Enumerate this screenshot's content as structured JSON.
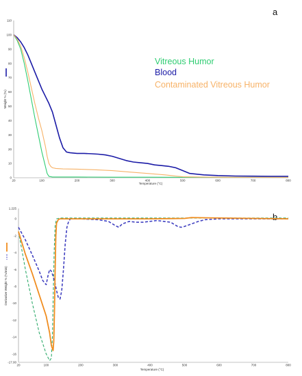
{
  "chart_data": [
    {
      "type": "line",
      "panel_label": "a",
      "xlabel": "Temperature (°C)",
      "ylabel": "Weight % (%)",
      "xlim": [
        20,
        800
      ],
      "ylim": [
        0,
        110
      ],
      "x_ticks": [
        "20",
        "100",
        "200",
        "300",
        "400",
        "500",
        "600",
        "700",
        "800"
      ],
      "y_ticks": [
        "0",
        "10",
        "20",
        "30",
        "40",
        "50",
        "60",
        "70",
        "80",
        "90",
        "100",
        "110"
      ],
      "grid": false,
      "legend_position": "center-right",
      "series": [
        {
          "name": "Vitreous Humor",
          "color": "#2ecc71",
          "style": "solid",
          "x": [
            20,
            30,
            40,
            50,
            60,
            70,
            80,
            90,
            100,
            110,
            115,
            120,
            130,
            200,
            300,
            400,
            500,
            600,
            700,
            800
          ],
          "y": [
            100,
            96,
            90,
            80,
            68,
            55,
            42,
            30,
            18,
            8,
            3,
            1,
            0.5,
            0.5,
            0.4,
            0.4,
            0.3,
            0.3,
            0.3,
            0.3
          ]
        },
        {
          "name": "Blood",
          "color": "#1a1aa6",
          "style": "solid",
          "x": [
            20,
            30,
            40,
            50,
            60,
            70,
            80,
            90,
            100,
            110,
            120,
            130,
            140,
            150,
            160,
            170,
            180,
            200,
            220,
            240,
            260,
            280,
            300,
            320,
            340,
            360,
            380,
            400,
            420,
            440,
            460,
            480,
            500,
            520,
            560,
            600,
            650,
            700,
            750,
            800
          ],
          "y": [
            100,
            98,
            95,
            91,
            86,
            80,
            74,
            68,
            62,
            57,
            52,
            46,
            37,
            28,
            21,
            18,
            17.5,
            17,
            17,
            16.8,
            16.5,
            16,
            15,
            13.5,
            12,
            11,
            10.5,
            10,
            9,
            8.5,
            8,
            7,
            5,
            3,
            2,
            1.5,
            1.2,
            1.1,
            1,
            1
          ]
        },
        {
          "name": "Contaminated Vitreous Humor",
          "color": "#f7b267",
          "style": "solid",
          "x": [
            20,
            30,
            40,
            50,
            60,
            70,
            80,
            90,
            100,
            110,
            115,
            120,
            125,
            130,
            140,
            160,
            200,
            250,
            300,
            350,
            400,
            450,
            480,
            500,
            550,
            600,
            700,
            800
          ],
          "y": [
            100,
            97,
            92,
            84,
            74,
            63,
            52,
            42,
            33,
            22,
            15,
            10,
            8,
            7,
            6.5,
            6.2,
            6,
            5.6,
            5,
            4,
            3,
            2,
            1.2,
            0.7,
            0.5,
            0.4,
            0.3,
            0.3
          ]
        }
      ]
    },
    {
      "type": "line",
      "panel_label": "b",
      "xlabel": "Temperature (°C)",
      "ylabel": "Derivative Weight % (%/min)",
      "xlim": [
        20,
        800
      ],
      "ylim": [
        -17.0,
        1.225
      ],
      "x_ticks": [
        "20",
        "100",
        "200",
        "300",
        "400",
        "500",
        "600",
        "700",
        "800"
      ],
      "y_ticks": [
        "1.225",
        "0",
        "-2",
        "-4",
        "-6",
        "-8",
        "-10",
        "-12",
        "-14",
        "-16",
        "-17.00"
      ],
      "grid": false,
      "series": [
        {
          "name": "Vitreous Humor",
          "color": "#2eaa6b",
          "style": "dashed",
          "x": [
            20,
            40,
            60,
            80,
            100,
            110,
            115,
            118,
            120,
            123,
            126,
            130,
            140,
            160,
            200,
            300,
            400,
            500,
            600,
            700,
            800
          ],
          "y": [
            -1.5,
            -6,
            -10,
            -13.5,
            -16,
            -16.8,
            -16.5,
            -14,
            -10,
            -4,
            -0.8,
            0,
            0.1,
            0.1,
            0.1,
            0.1,
            0.1,
            0.1,
            0.1,
            0.1,
            0.1
          ]
        },
        {
          "name": "Blood",
          "color": "#4040c0",
          "style": "dashed",
          "x": [
            20,
            40,
            60,
            80,
            90,
            100,
            105,
            110,
            115,
            120,
            125,
            130,
            135,
            140,
            145,
            150,
            155,
            160,
            165,
            170,
            180,
            200,
            250,
            280,
            300,
            310,
            320,
            340,
            360,
            380,
            400,
            420,
            440,
            460,
            480,
            490,
            500,
            520,
            540,
            560,
            600,
            700,
            800
          ],
          "y": [
            -1,
            -2.5,
            -4.3,
            -6.2,
            -7.3,
            -7.8,
            -6.8,
            -6,
            -6.2,
            -6.8,
            -7.5,
            -8.5,
            -9.3,
            -9.5,
            -8.5,
            -6,
            -3,
            -1,
            -0.3,
            0,
            0,
            0,
            -0.1,
            -0.3,
            -0.8,
            -1,
            -0.6,
            -0.3,
            -0.4,
            -0.4,
            -0.3,
            -0.2,
            -0.3,
            -0.4,
            -0.9,
            -1.0,
            -0.9,
            -0.6,
            -0.3,
            -0.1,
            0,
            0,
            0
          ]
        },
        {
          "name": "Contaminated Vitreous Humor",
          "color": "#f08c1e",
          "style": "solid",
          "x": [
            20,
            40,
            60,
            80,
            100,
            110,
            115,
            120,
            122,
            124,
            126,
            128,
            130,
            135,
            140,
            150,
            200,
            300,
            400,
            500,
            520,
            600,
            700,
            800
          ],
          "y": [
            -1.5,
            -4.2,
            -6.5,
            -9,
            -11.5,
            -13.5,
            -15,
            -15.6,
            -14.5,
            -11,
            -6,
            -2,
            -0.5,
            -0.1,
            0,
            0,
            0,
            0,
            0,
            0.05,
            0.15,
            0.1,
            0.05,
            0
          ]
        }
      ]
    }
  ]
}
